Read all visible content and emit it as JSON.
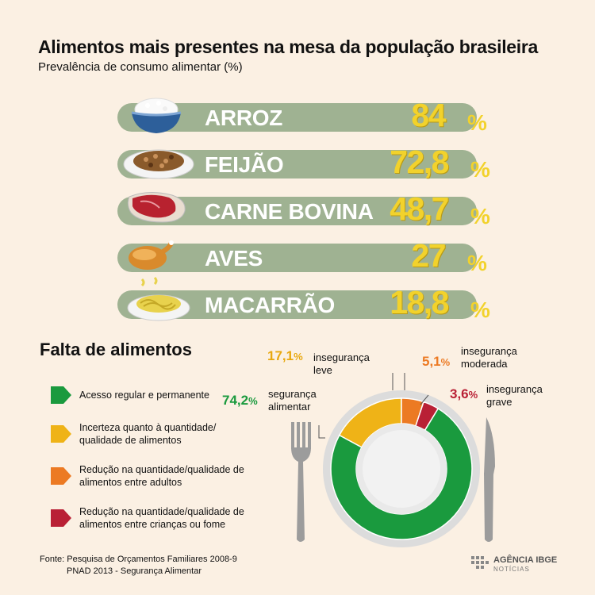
{
  "header": {
    "title": "Alimentos mais presentes na mesa da população brasileira",
    "subtitle": "Prevalência de consumo alimentar (%)"
  },
  "foods": [
    {
      "name": "ARROZ",
      "value": "84",
      "icon": "rice-bowl-icon"
    },
    {
      "name": "FEIJÃO",
      "value": "72,8",
      "icon": "beans-plate-icon"
    },
    {
      "name": "CARNE BOVINA",
      "value": "48,7",
      "icon": "beef-steak-icon"
    },
    {
      "name": "AVES",
      "value": "27",
      "icon": "roast-chicken-icon"
    },
    {
      "name": "MACARRÃO",
      "value": "18,8",
      "icon": "pasta-plate-icon"
    }
  ],
  "percent_sign": "%",
  "section": {
    "title": "Falta de alimentos"
  },
  "legend": [
    {
      "text": "Acesso regular e permanente",
      "color": "#1a9a3e"
    },
    {
      "text": "Incerteza quanto à quantidade/ qualidade de alimentos",
      "color": "#efb317"
    },
    {
      "text": "Redução na quantidade/qualidade de alimentos entre adultos",
      "color": "#ec7a23"
    },
    {
      "text": "Redução na quantidade/qualidade de alimentos entre crianças ou fome",
      "color": "#b92035"
    }
  ],
  "ring_labels": {
    "seguranca": {
      "value": "74,2",
      "label1": "segurança",
      "label2": "alimentar"
    },
    "leve": {
      "value": "17,1",
      "label1": "insegurança",
      "label2": "leve"
    },
    "moderada": {
      "value": "5,1",
      "label1": "insegurança",
      "label2": "moderada"
    },
    "grave": {
      "value": "3,6",
      "label1": "insegurança",
      "label2": "grave"
    }
  },
  "chart_data": [
    {
      "type": "bar",
      "title": "Alimentos mais presentes na mesa da população brasileira",
      "subtitle": "Prevalência de consumo alimentar (%)",
      "categories": [
        "ARROZ",
        "FEIJÃO",
        "CARNE BOVINA",
        "AVES",
        "MACARRÃO"
      ],
      "values": [
        84,
        72.8,
        48.7,
        27,
        18.8
      ]
    },
    {
      "type": "pie",
      "title": "Falta de alimentos",
      "categories": [
        "segurança alimentar",
        "insegurança leve",
        "insegurança moderada",
        "insegurança grave"
      ],
      "values": [
        74.2,
        17.1,
        5.1,
        3.6
      ],
      "colors": [
        "#1a9a3e",
        "#efb317",
        "#ec7a23",
        "#b92035"
      ]
    }
  ],
  "source": {
    "line1": "Fonte: Pesquisa de Orçamentos Familiares 2008-9",
    "line2": "PNAD 2013 - Segurança Alimentar"
  },
  "logo": {
    "name": "AGÊNCIA IBGE",
    "sub": "NOTÍCIAS"
  }
}
